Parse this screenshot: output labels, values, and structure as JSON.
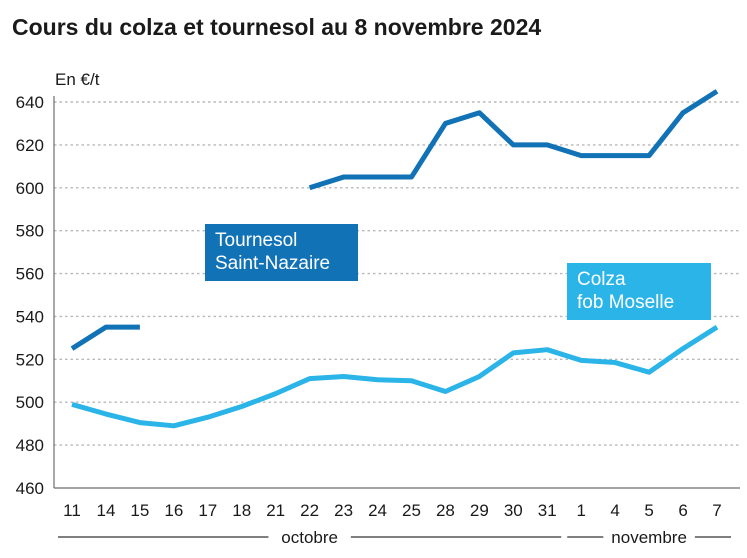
{
  "title": "Cours du colza et tournesol au 8 novembre 2024",
  "unit_label": "En €/t",
  "colors": {
    "tournesol": "#1172b6",
    "colza": "#2bb4e8",
    "grid": "#b8b8b8",
    "text": "#1a1a1a"
  },
  "series_labels": {
    "tournesol": {
      "line1": "Tournesol",
      "line2": "Saint-Nazaire"
    },
    "colza": {
      "line1": "Colza",
      "line2": "fob Moselle"
    }
  },
  "chart_data": {
    "type": "line",
    "title": "Cours du colza et tournesol au 8 novembre 2024",
    "ylabel": "En €/t",
    "xlabel": "",
    "ylim": [
      460,
      640
    ],
    "yticks": [
      460,
      480,
      500,
      520,
      540,
      560,
      580,
      600,
      620,
      640
    ],
    "grid": true,
    "categories": [
      "11",
      "14",
      "15",
      "16",
      "17",
      "18",
      "21",
      "22",
      "23",
      "24",
      "25",
      "28",
      "29",
      "30",
      "31",
      "1",
      "4",
      "5",
      "6",
      "7"
    ],
    "months": [
      {
        "label": "octobre",
        "from": 0,
        "to": 14
      },
      {
        "label": "novembre",
        "from": 15,
        "to": 19
      }
    ],
    "series": [
      {
        "name": "Tournesol Saint-Nazaire",
        "key": "tournesol",
        "values": [
          525,
          535,
          535,
          null,
          null,
          null,
          null,
          600,
          605,
          605,
          605,
          630,
          635,
          620,
          620,
          615,
          615,
          615,
          635,
          645
        ]
      },
      {
        "name": "Colza fob Moselle",
        "key": "colza",
        "values": [
          499,
          494.5,
          490.5,
          489,
          493,
          498,
          504,
          511,
          512,
          510.5,
          510,
          505,
          512,
          523,
          524.5,
          519.5,
          518.5,
          514,
          525,
          535
        ]
      }
    ]
  }
}
